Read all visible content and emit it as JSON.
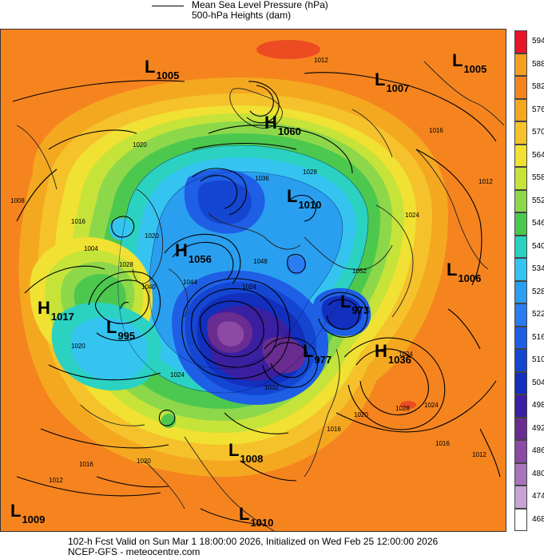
{
  "legend": {
    "line1": "Mean Sea Level Pressure (hPa)",
    "line2": "500-hPa Heights (dam)"
  },
  "colorbar": {
    "levels": [
      "594",
      "588",
      "582",
      "576",
      "570",
      "564",
      "558",
      "552",
      "546",
      "540",
      "534",
      "528",
      "522",
      "516",
      "510",
      "504",
      "498",
      "492",
      "486",
      "480",
      "474",
      "468"
    ],
    "colors": [
      "#e8142b",
      "#f4a020",
      "#f5841f",
      "#f4a820",
      "#f5c22b",
      "#f0e132",
      "#c6e33a",
      "#8cd84a",
      "#4cc84f",
      "#2bd2c2",
      "#35c4ef",
      "#2a9ff0",
      "#2a7df0",
      "#1e5fe6",
      "#1446d2",
      "#122fbe",
      "#3a1fa0",
      "#6a2c91",
      "#8c4aa4",
      "#a874bb",
      "#c6a4d4",
      "#ffffff"
    ]
  },
  "pressure_centers": [
    {
      "kind": "L",
      "value": "1005"
    },
    {
      "kind": "L",
      "value": "1007"
    },
    {
      "kind": "L",
      "value": "1005"
    },
    {
      "kind": "H",
      "value": "1060"
    },
    {
      "kind": "L",
      "value": "1010"
    },
    {
      "kind": "H",
      "value": "1056"
    },
    {
      "kind": "L",
      "value": "1006"
    },
    {
      "kind": "H",
      "value": "1017"
    },
    {
      "kind": "L",
      "value": "995"
    },
    {
      "kind": "L",
      "value": "973"
    },
    {
      "kind": "L",
      "value": "977"
    },
    {
      "kind": "H",
      "value": "1036"
    },
    {
      "kind": "L",
      "value": "1008"
    },
    {
      "kind": "L",
      "value": "1009"
    },
    {
      "kind": "L",
      "value": "1010"
    }
  ],
  "isobar_labels": [
    "1012",
    "1016",
    "1020",
    "1028",
    "1036",
    "1024",
    "1012",
    "1008",
    "1016",
    "1004",
    "1020",
    "1028",
    "1040",
    "1024",
    "1044",
    "1048",
    "1052",
    "1024",
    "1020",
    "1016",
    "1012",
    "1016",
    "1020",
    "1024",
    "1028",
    "1024",
    "1032",
    "1020",
    "1016",
    "1012"
  ],
  "footer": {
    "line1": "102-h Fcst Valid on Sun Mar  1 18:00:00 2026, Initialized on Wed Feb 25 12:00:00 2026",
    "line2": "NCEP-GFS  - meteocentre.com"
  }
}
